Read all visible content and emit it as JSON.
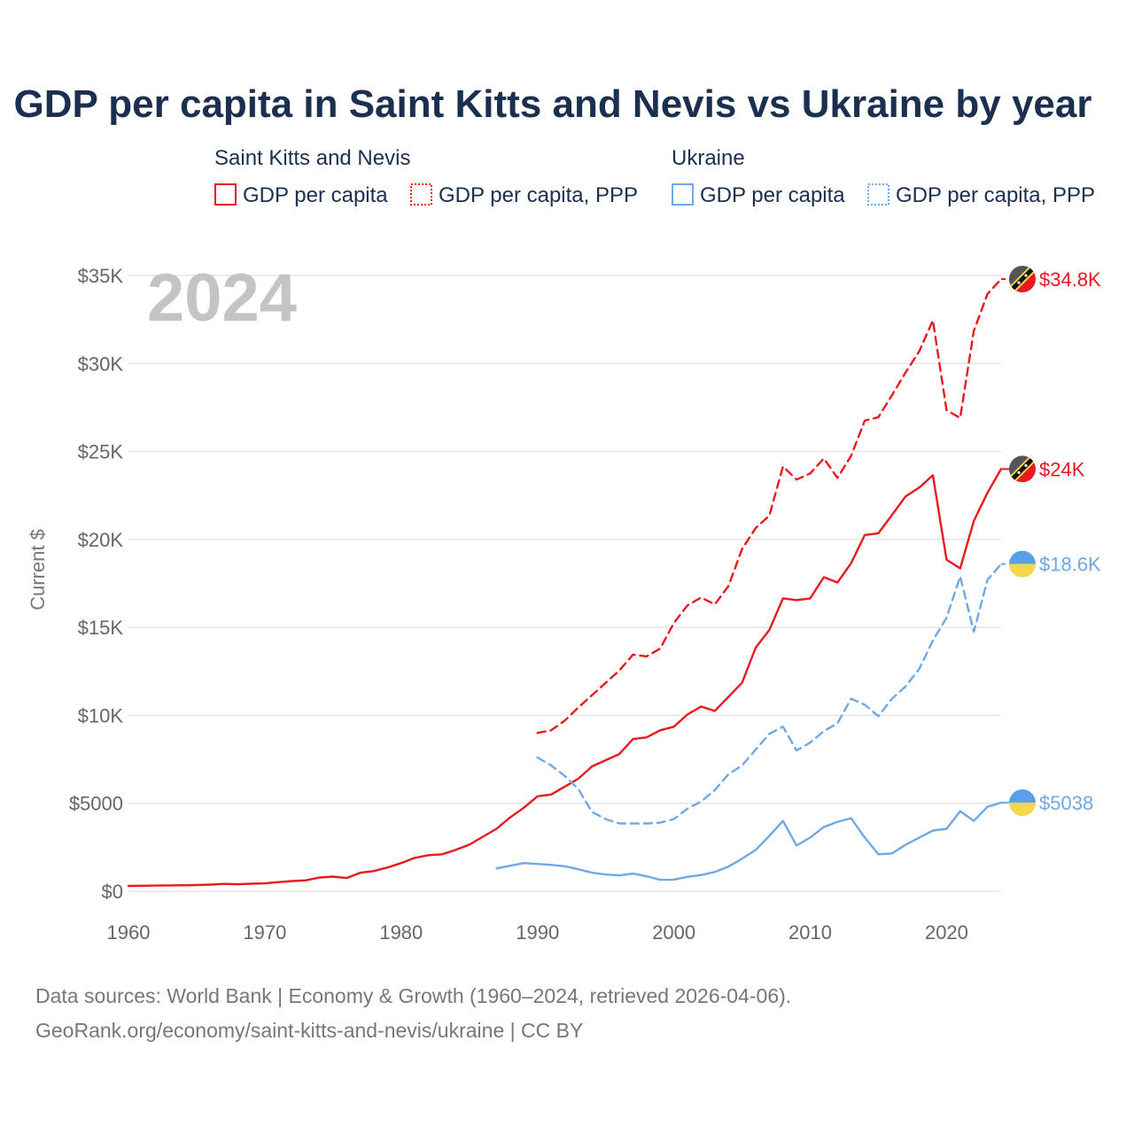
{
  "chart_data": {
    "type": "line",
    "title": "GDP per capita in Saint Kitts and Nevis vs Ukraine by year",
    "ylabel": "Current $",
    "xlabel": "",
    "xlim": [
      1960,
      2024
    ],
    "ylim": [
      0,
      35000
    ],
    "year_label": "2024",
    "x_ticks": [
      "1960",
      "1970",
      "1980",
      "1990",
      "2000",
      "2010",
      "2020"
    ],
    "y_ticks": [
      "$0",
      "$5000",
      "$10K",
      "$15K",
      "$20K",
      "$25K",
      "$30K",
      "$35K"
    ],
    "legend": {
      "groups": [
        {
          "name": "Saint Kitts and Nevis",
          "items": [
            "GDP per capita",
            "GDP per capita, PPP"
          ]
        },
        {
          "name": "Ukraine",
          "items": [
            "GDP per capita",
            "GDP per capita, PPP"
          ]
        }
      ]
    },
    "series": [
      {
        "name": "Saint Kitts and Nevis - GDP per capita",
        "color": "#e8191f",
        "style": "solid",
        "end_label": "$24K",
        "x": [
          1960,
          1961,
          1962,
          1963,
          1964,
          1965,
          1966,
          1967,
          1968,
          1969,
          1970,
          1971,
          1972,
          1973,
          1974,
          1975,
          1976,
          1977,
          1978,
          1979,
          1980,
          1981,
          1982,
          1983,
          1984,
          1985,
          1986,
          1987,
          1988,
          1989,
          1990,
          1991,
          1992,
          1993,
          1994,
          1995,
          1996,
          1997,
          1998,
          1999,
          2000,
          2001,
          2002,
          2003,
          2004,
          2005,
          2006,
          2007,
          2008,
          2009,
          2010,
          2011,
          2012,
          2013,
          2014,
          2015,
          2016,
          2017,
          2018,
          2019,
          2020,
          2021,
          2022,
          2023,
          2024
        ],
        "values": [
          300,
          310,
          320,
          330,
          340,
          350,
          380,
          420,
          400,
          430,
          450,
          520,
          580,
          620,
          780,
          830,
          750,
          1050,
          1150,
          1350,
          1600,
          1900,
          2050,
          2100,
          2350,
          2650,
          3100,
          3550,
          4200,
          4750,
          5400,
          5500,
          5950,
          6400,
          7100,
          7450,
          7800,
          8650,
          8750,
          9150,
          9350,
          10050,
          10500,
          10250,
          11050,
          11850,
          13850,
          14850,
          16650,
          16550,
          16650,
          17850,
          17550,
          18650,
          20250,
          20350,
          21400,
          22450,
          22950,
          23650,
          18850,
          18350,
          21050,
          22650,
          24000
        ]
      },
      {
        "name": "Saint Kitts and Nevis - GDP per capita, PPP",
        "color": "#e8191f",
        "style": "dashed",
        "end_label": "$34.8K",
        "x": [
          1990,
          1991,
          1992,
          1993,
          1994,
          1995,
          1996,
          1997,
          1998,
          1999,
          2000,
          2001,
          2002,
          2003,
          2004,
          2005,
          2006,
          2007,
          2008,
          2009,
          2010,
          2011,
          2012,
          2013,
          2014,
          2015,
          2016,
          2017,
          2018,
          2019,
          2020,
          2021,
          2022,
          2023,
          2024
        ],
        "values": [
          9000,
          9150,
          9700,
          10450,
          11150,
          11850,
          12550,
          13450,
          13350,
          13800,
          15250,
          16250,
          16700,
          16300,
          17350,
          19450,
          20650,
          21350,
          24150,
          23400,
          23750,
          24600,
          23500,
          24750,
          26750,
          26950,
          28200,
          29500,
          30700,
          32450,
          27350,
          26900,
          31850,
          33950,
          34800
        ]
      },
      {
        "name": "Ukraine - GDP per capita",
        "color": "#6fa8e6",
        "style": "solid",
        "end_label": "$5038",
        "x": [
          1987,
          1988,
          1989,
          1990,
          1991,
          1992,
          1993,
          1994,
          1995,
          1996,
          1997,
          1998,
          1999,
          2000,
          2001,
          2002,
          2003,
          2004,
          2005,
          2006,
          2007,
          2008,
          2009,
          2010,
          2011,
          2012,
          2013,
          2014,
          2015,
          2016,
          2017,
          2018,
          2019,
          2020,
          2021,
          2022,
          2023,
          2024
        ],
        "values": [
          1300,
          1450,
          1600,
          1550,
          1500,
          1420,
          1250,
          1050,
          950,
          900,
          1000,
          850,
          650,
          660,
          820,
          920,
          1100,
          1400,
          1850,
          2350,
          3150,
          4000,
          2600,
          3050,
          3650,
          3950,
          4150,
          3050,
          2100,
          2150,
          2650,
          3050,
          3450,
          3550,
          4550,
          4000,
          4800,
          5038
        ]
      },
      {
        "name": "Ukraine - GDP per capita, PPP",
        "color": "#6fa8e6",
        "style": "dashed",
        "end_label": "$18.6K",
        "x": [
          1990,
          1991,
          1992,
          1993,
          1994,
          1995,
          1996,
          1997,
          1998,
          1999,
          2000,
          2001,
          2002,
          2003,
          2004,
          2005,
          2006,
          2007,
          2008,
          2009,
          2010,
          2011,
          2012,
          2013,
          2014,
          2015,
          2016,
          2017,
          2018,
          2019,
          2020,
          2021,
          2022,
          2023,
          2024
        ],
        "values": [
          7600,
          7150,
          6550,
          5800,
          4500,
          4100,
          3850,
          3850,
          3850,
          3900,
          4100,
          4700,
          5100,
          5750,
          6650,
          7150,
          8050,
          8950,
          9350,
          8000,
          8450,
          9100,
          9550,
          10950,
          10600,
          9950,
          10950,
          11650,
          12650,
          14250,
          15550,
          17900,
          14750,
          17700,
          18600
        ]
      }
    ],
    "source_lines": [
      "Data sources: World Bank | Economy & Growth (1960–2024, retrieved 2026-04-06).",
      "GeoRank.org/economy/saint-kitts-and-nevis/ukraine | CC BY"
    ]
  }
}
